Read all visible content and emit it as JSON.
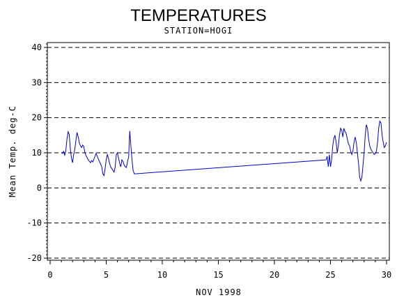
{
  "chart_data": {
    "type": "line",
    "title": "TEMPERATURES",
    "subtitle": "STATION=HOGI",
    "xlabel": "NOV 1998",
    "ylabel": "Mean Temp. deg-C",
    "xlim": [
      0,
      30
    ],
    "ylim": [
      -21,
      41
    ],
    "x_ticks": [
      0,
      5,
      10,
      15,
      20,
      25,
      30
    ],
    "y_ticks": [
      -20,
      -10,
      0,
      10,
      20,
      30,
      40
    ],
    "x_tick_labels": [
      "0",
      "5",
      "10",
      "15",
      "20",
      "25",
      "30"
    ],
    "y_tick_labels": [
      "-20",
      "-10",
      "0",
      "10",
      "20",
      "30",
      "40"
    ],
    "grid": "horizontal dashed at major y ticks",
    "line_color": "#0000cc",
    "series": [
      {
        "x": [
          1.0,
          1.1,
          1.2,
          1.3,
          1.4,
          1.5,
          1.6,
          1.7,
          1.8,
          1.9,
          2.0,
          2.1,
          2.2,
          2.3,
          2.4,
          2.5,
          2.6,
          2.7,
          2.8,
          2.9,
          3.0,
          3.1,
          3.2,
          3.3,
          3.4,
          3.5,
          3.6,
          3.7,
          3.8,
          3.9,
          4.0,
          4.1,
          4.2,
          4.3,
          4.4,
          4.5,
          4.6,
          4.7,
          4.8,
          4.9,
          5.0,
          5.1,
          5.2,
          5.3,
          5.4,
          5.5,
          5.6,
          5.7,
          5.8,
          5.9,
          6.0,
          6.1,
          6.2,
          6.3,
          6.4,
          6.5,
          6.6,
          6.7,
          6.8,
          6.9,
          7.0,
          7.1,
          7.2,
          7.3,
          7.4,
          7.5,
          24.6,
          24.7,
          24.8,
          24.9,
          25.0,
          25.1,
          25.2,
          25.3,
          25.4,
          25.5,
          25.6,
          25.7,
          25.8,
          25.9,
          26.0,
          26.1,
          26.2,
          26.3,
          26.4,
          26.5,
          26.6,
          26.7,
          26.8,
          26.9,
          27.0,
          27.1,
          27.2,
          27.3,
          27.4,
          27.5,
          27.6,
          27.7,
          27.8,
          27.9,
          28.0,
          28.1,
          28.2,
          28.3,
          28.4,
          28.5,
          28.6,
          28.7,
          28.8,
          28.9,
          29.0,
          29.1,
          29.2,
          29.3,
          29.4,
          29.5,
          29.6,
          29.7,
          29.8,
          29.9,
          30.0
        ],
        "y": [
          10.2,
          9.8,
          10.4,
          9.3,
          10.6,
          14.0,
          16.0,
          15.2,
          11.0,
          8.5,
          7.2,
          9.5,
          11.0,
          13.5,
          15.8,
          14.5,
          12.8,
          12.0,
          11.5,
          12.2,
          11.8,
          10.0,
          9.2,
          8.6,
          8.0,
          7.6,
          7.2,
          7.8,
          7.4,
          8.2,
          9.0,
          9.8,
          9.0,
          8.2,
          7.5,
          6.8,
          6.0,
          4.0,
          3.5,
          5.5,
          8.0,
          9.5,
          8.5,
          7.0,
          6.0,
          5.5,
          5.0,
          4.5,
          6.0,
          9.5,
          10.0,
          8.5,
          7.0,
          6.0,
          8.0,
          7.5,
          6.5,
          6.0,
          5.8,
          7.5,
          8.8,
          16.2,
          12.0,
          8.0,
          5.0,
          4.0,
          8.0,
          9.0,
          6.0,
          9.5,
          6.0,
          8.0,
          12.0,
          14.0,
          15.0,
          13.0,
          10.0,
          12.0,
          15.0,
          17.0,
          16.5,
          14.5,
          17.0,
          16.0,
          15.5,
          14.0,
          12.5,
          12.0,
          10.5,
          9.5,
          10.5,
          13.0,
          14.5,
          13.0,
          10.0,
          7.0,
          3.0,
          2.0,
          3.0,
          6.5,
          10.0,
          15.0,
          18.0,
          17.0,
          14.0,
          12.0,
          11.0,
          10.5,
          10.0,
          9.5,
          9.8,
          10.5,
          13.0,
          17.0,
          19.0,
          18.5,
          15.0,
          13.0,
          11.5,
          12.0,
          13.0
        ],
        "x_gap": [
          7.5,
          24.6
        ]
      }
    ]
  }
}
